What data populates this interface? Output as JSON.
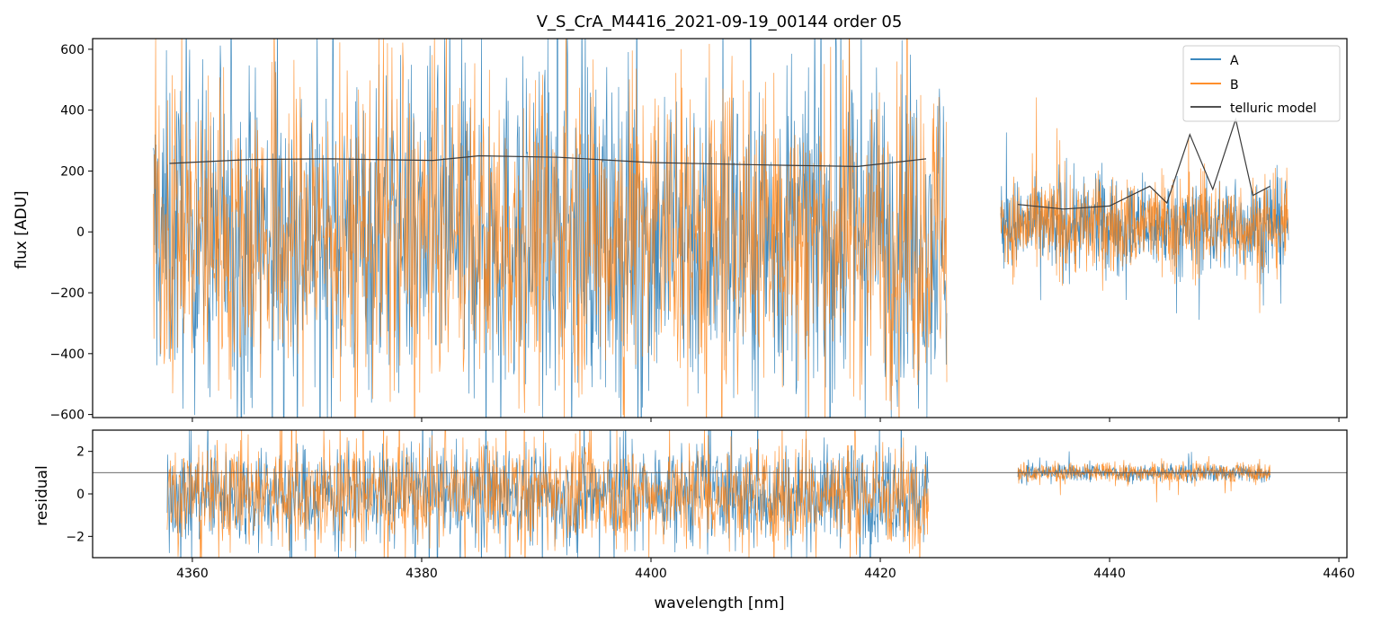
{
  "chart_data": [
    {
      "type": "line",
      "panel": "top",
      "title": "V_S_CrA_M4416_2021-09-19_00144  order 05",
      "xlabel": "",
      "ylabel": "flux [ADU]",
      "xlim": [
        4351.3,
        4460.7
      ],
      "ylim": [
        -610,
        635
      ],
      "yticks": [
        -600,
        -400,
        -200,
        0,
        200,
        400,
        600
      ],
      "ytick_labels": [
        "−600",
        "−400",
        "−200",
        "0",
        "200",
        "400",
        "600"
      ],
      "xticks": [
        4360,
        4380,
        4400,
        4420,
        4440,
        4460
      ],
      "legend": {
        "position": "top-right",
        "entries": [
          "A",
          "B",
          "telluric model"
        ]
      },
      "series": [
        {
          "name": "A",
          "color": "#1f77b4",
          "x_segments": [
            [
              4356.6,
              4425.8
            ],
            [
              4430.5,
              4455.6
            ]
          ],
          "approx_level": [
            0,
            20
          ],
          "approx_noise_amplitude": [
            500,
            140
          ]
        },
        {
          "name": "B",
          "color": "#ff7f0e",
          "x_segments": [
            [
              4356.6,
              4425.8
            ],
            [
              4430.5,
              4455.6
            ]
          ],
          "approx_level": [
            0,
            20
          ],
          "approx_noise_amplitude": [
            480,
            150
          ]
        },
        {
          "name": "telluric model",
          "color": "#3a3a3a",
          "x": [
            4358.0,
            4365.0,
            4372.0,
            4381.0,
            4385.0,
            4392.0,
            4400.0,
            4410.0,
            4418.0,
            4424.0
          ],
          "y": [
            225,
            238,
            240,
            235,
            250,
            245,
            228,
            220,
            215,
            240
          ],
          "x2": [
            4432.0,
            4436.0,
            4440.0,
            4443.5,
            4445.0,
            4447.0,
            4449.0,
            4451.0,
            4452.5,
            4454.0
          ],
          "y2": [
            90,
            75,
            85,
            150,
            95,
            320,
            140,
            370,
            120,
            150
          ]
        }
      ]
    },
    {
      "type": "line",
      "panel": "bottom",
      "xlabel": "wavelength [nm]",
      "ylabel": "residual",
      "xlim": [
        4351.3,
        4460.7
      ],
      "ylim": [
        -3,
        3
      ],
      "yticks": [
        -2,
        0,
        2
      ],
      "ytick_labels": [
        "−2",
        "0",
        "2"
      ],
      "xticks": [
        4360,
        4380,
        4400,
        4420,
        4440,
        4460
      ],
      "xtick_labels": [
        "4360",
        "4380",
        "4400",
        "4420",
        "4440",
        "4460"
      ],
      "reference_line": 1,
      "series": [
        {
          "name": "A",
          "color": "#1f77b4",
          "x_segments": [
            [
              4357.8,
              4424.2
            ],
            [
              4432.0,
              4454.0
            ]
          ],
          "approx_level": [
            0,
            1
          ],
          "approx_noise_amplitude": [
            2.2,
            0.4
          ]
        },
        {
          "name": "B",
          "color": "#ff7f0e",
          "x_segments": [
            [
              4357.8,
              4424.2
            ],
            [
              4432.0,
              4454.0
            ]
          ],
          "approx_level": [
            0,
            1
          ],
          "approx_noise_amplitude": [
            2.3,
            0.45
          ]
        }
      ]
    }
  ]
}
